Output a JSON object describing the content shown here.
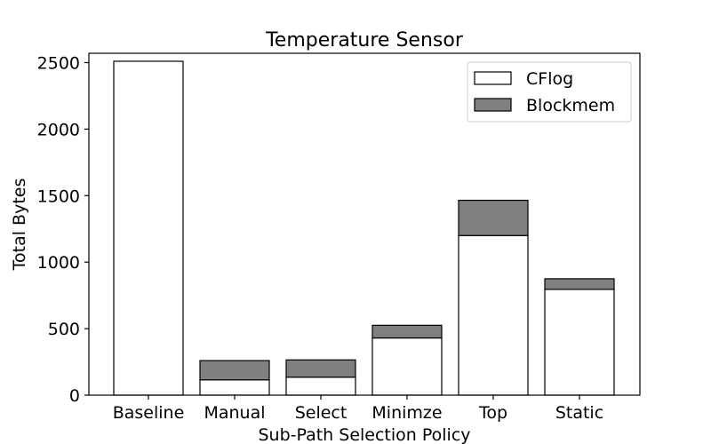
{
  "chart_data": {
    "type": "bar",
    "stacked": true,
    "title": "Temperature Sensor",
    "xlabel": "Sub-Path Selection Policy",
    "ylabel": "Total Bytes",
    "categories": [
      "Baseline",
      "Manual",
      "Select",
      "Minimze",
      "Top",
      "Static"
    ],
    "series": [
      {
        "name": "CFlog",
        "values": [
          2510,
          115,
          135,
          430,
          1200,
          795
        ],
        "color": "#ffffff"
      },
      {
        "name": "Blockmem",
        "values": [
          0,
          145,
          130,
          95,
          265,
          80
        ],
        "color": "#808080"
      }
    ],
    "ylim": [
      0,
      2570
    ],
    "yticks": [
      0,
      500,
      1000,
      1500,
      2000,
      2500
    ],
    "grid": false,
    "legend_position": "top-right"
  }
}
